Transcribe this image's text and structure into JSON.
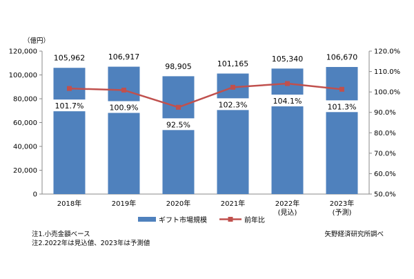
{
  "chart_data": {
    "type": "bar+line",
    "y_left_unit": "（億円）",
    "categories": [
      [
        "2018年"
      ],
      [
        "2019年"
      ],
      [
        "2020年"
      ],
      [
        "2021年"
      ],
      [
        "2022年",
        "(見込)"
      ],
      [
        "2023年",
        "(予測)"
      ]
    ],
    "left_axis": {
      "min": 0,
      "max": 120000,
      "step": 20000,
      "tick_labels": [
        "0",
        "20,000",
        "40,000",
        "60,000",
        "80,000",
        "100,000",
        "120,000"
      ]
    },
    "right_axis": {
      "min": 50,
      "max": 120,
      "step": 10,
      "tick_labels": [
        "50.0%",
        "60.0%",
        "70.0%",
        "80.0%",
        "90.0%",
        "100.0%",
        "110.0%",
        "120.0%"
      ]
    },
    "series": [
      {
        "name": "ギフト市場規模",
        "type": "bar",
        "axis": "left",
        "color": "#4f81bd",
        "values": [
          105962,
          106917,
          98905,
          101165,
          105340,
          106670
        ],
        "value_labels": [
          "105,962",
          "106,917",
          "98,905",
          "101,165",
          "105,340",
          "106,670"
        ]
      },
      {
        "name": "前年比",
        "type": "line",
        "axis": "right",
        "color": "#c0504d",
        "values": [
          101.7,
          100.9,
          92.5,
          102.3,
          104.1,
          101.3
        ],
        "value_labels": [
          "101.7%",
          "100.9%",
          "92.5%",
          "102.3%",
          "104.1%",
          "101.3%"
        ]
      }
    ],
    "legend_position": "bottom-center",
    "grid": false
  },
  "notes": [
    "注1.小売金額ベース",
    "注2.2022年は見込値、2023年は予測値"
  ],
  "source": "矢野経済研究所調べ"
}
